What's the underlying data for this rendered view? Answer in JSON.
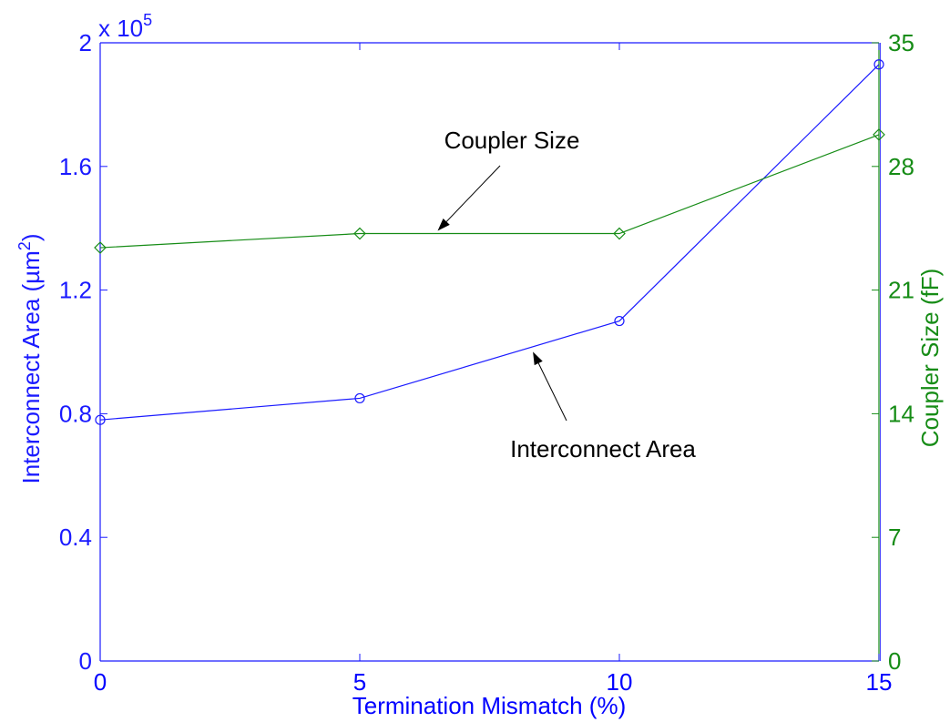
{
  "chart_data": {
    "type": "line",
    "xlabel": "Termination Mismatch (%)",
    "x": [
      0,
      5,
      10,
      15
    ],
    "xlim": [
      0,
      15
    ],
    "xticks": [
      "0",
      "5",
      "10",
      "15"
    ],
    "y_left": {
      "label_main": "Interconnect Area (µm",
      "label_sup": "2",
      "label_end": ")",
      "multiplier": "x 10",
      "multiplier_exp": "5",
      "ylim": [
        0,
        2
      ],
      "ticks": [
        0,
        0.4,
        0.8,
        1.2,
        1.6,
        2
      ],
      "tick_labels": [
        "0",
        "0.4",
        "0.8",
        "1.2",
        "1.6",
        "2"
      ],
      "color": "#1a1aff"
    },
    "y_right": {
      "label": "Coupler Size (fF)",
      "ylim": [
        0,
        35
      ],
      "ticks": [
        0,
        7,
        14,
        21,
        28,
        35
      ],
      "tick_labels": [
        "0",
        "7",
        "14",
        "21",
        "28",
        "35"
      ],
      "color": "#168c16"
    },
    "series": [
      {
        "axis": "left",
        "marker": "circle",
        "color": "#1a1aff",
        "values": [
          0.78,
          0.85,
          1.1,
          1.93
        ]
      },
      {
        "axis": "right",
        "marker": "diamond",
        "color": "#168c16",
        "values": [
          23.4,
          24.2,
          24.2,
          29.8
        ]
      }
    ],
    "annotations": [
      {
        "text": "Coupler Size",
        "points_to_series": 1,
        "target_x": 6.5
      },
      {
        "text": "Interconnect Area",
        "points_to_series": 0,
        "target_x": 8.3
      }
    ]
  }
}
